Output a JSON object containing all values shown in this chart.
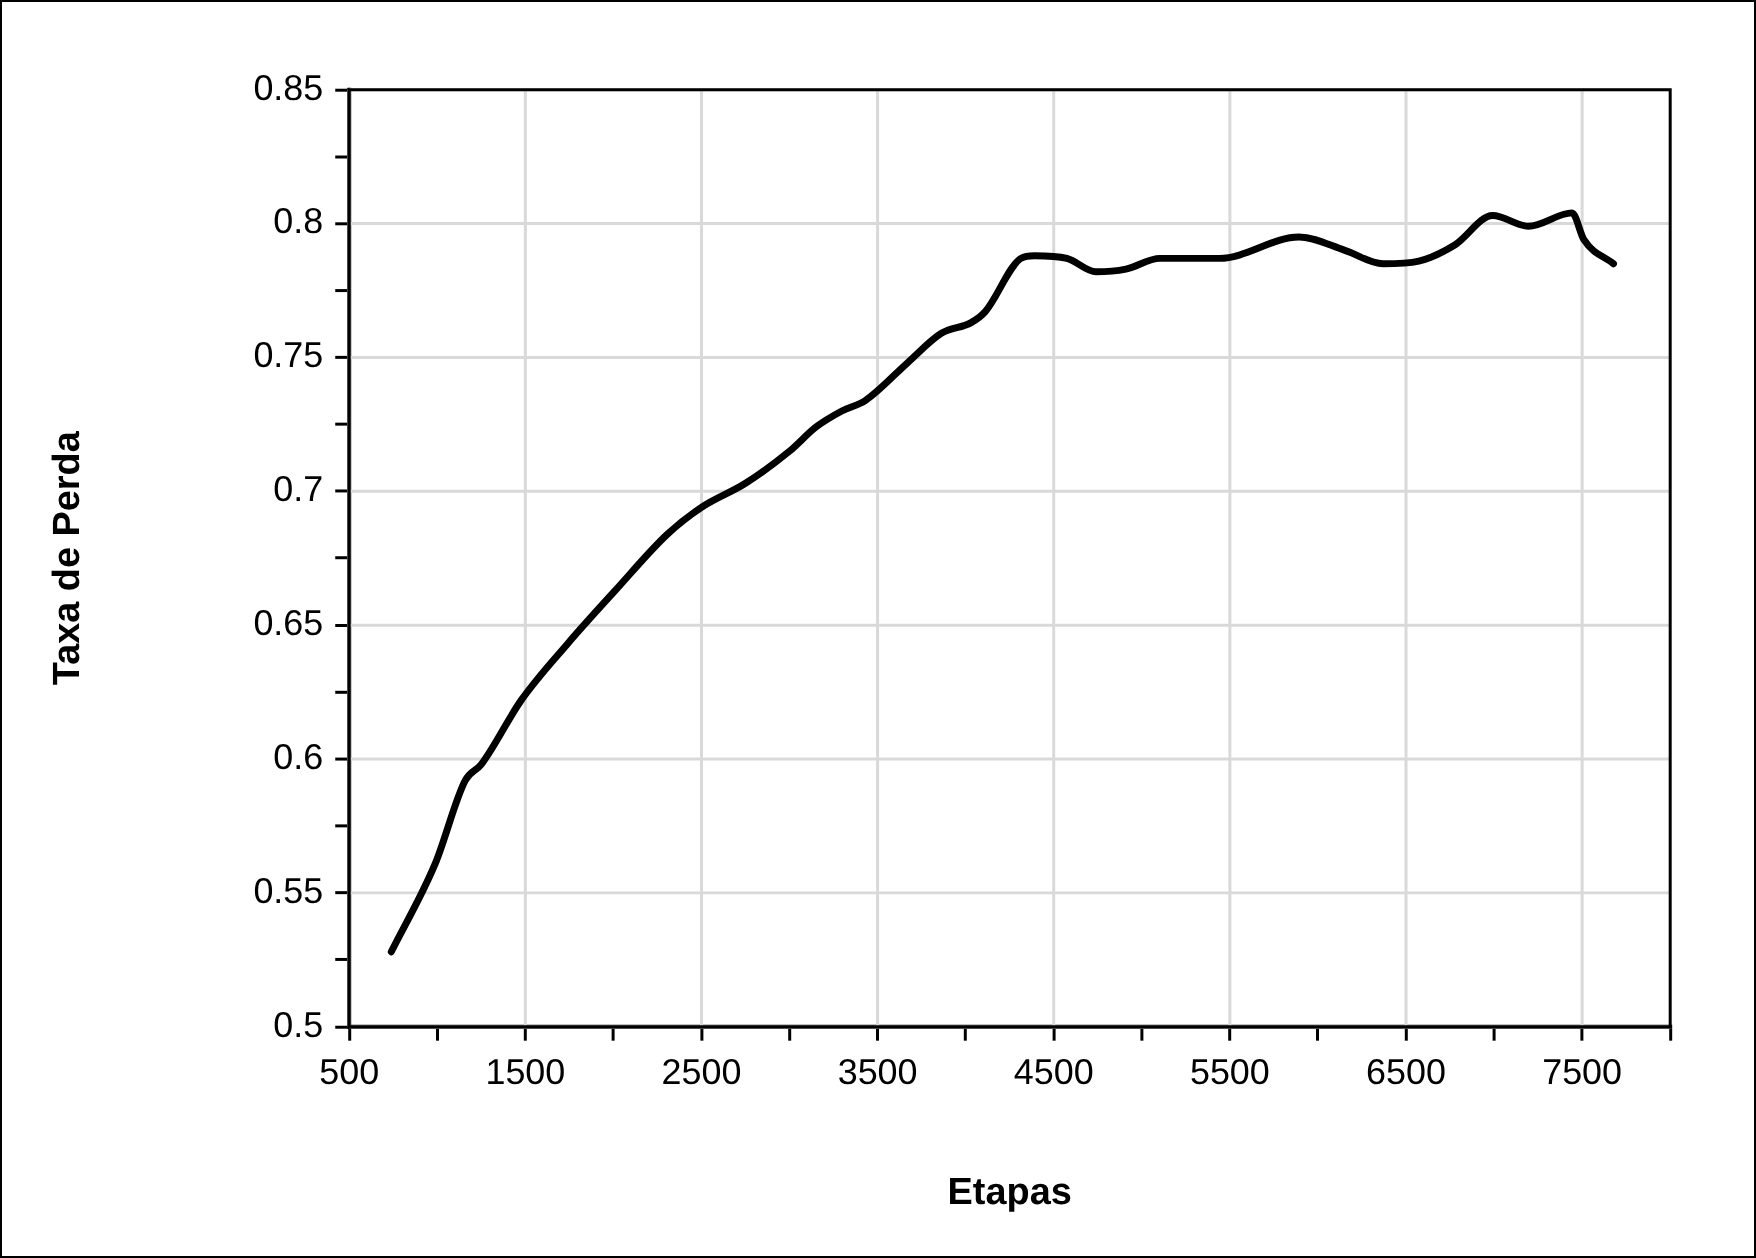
{
  "chart_data": {
    "type": "line",
    "xlabel": "Etapas",
    "ylabel": "Taxa de Perda",
    "grid": true,
    "marker": "none",
    "line_style": "solid",
    "xlim": [
      500,
      8000
    ],
    "ylim": [
      0.5,
      0.85
    ],
    "xticks": [
      500,
      {
        "value": 1000,
        "label": null
      },
      1500,
      {
        "value": 2000,
        "label": null
      },
      2500,
      {
        "value": 3000,
        "label": null
      },
      3500,
      {
        "value": 4000,
        "label": null
      },
      4500,
      {
        "value": 5000,
        "label": null
      },
      5500,
      {
        "value": 6000,
        "label": null
      },
      6500,
      {
        "value": 7000,
        "label": null
      },
      7500,
      {
        "value": 8000,
        "label": null
      }
    ],
    "yticks": [
      0.5,
      {
        "value": 0.525,
        "label": null
      },
      0.55,
      {
        "value": 0.575,
        "label": null
      },
      0.6,
      {
        "value": 0.625,
        "label": null
      },
      0.65,
      {
        "value": 0.675,
        "label": null
      },
      0.7,
      {
        "value": 0.725,
        "label": null
      },
      0.75,
      {
        "value": 0.775,
        "label": null
      },
      0.8,
      {
        "value": 0.825,
        "label": null
      },
      0.85
    ],
    "series": [
      {
        "color": "#000000",
        "x": [
          739,
          989,
          1159,
          1250,
          1477,
          1739,
          2011,
          2307,
          2500,
          2750,
          3000,
          3150,
          3297,
          3432,
          3670,
          3862,
          4031,
          4110,
          4314,
          4390,
          4575,
          4740,
          4910,
          5103,
          5440,
          5893,
          6153,
          6370,
          6573,
          6777,
          6992,
          7195,
          7443,
          7510,
          7678
        ],
        "values": [
          0.528,
          0.561,
          0.592,
          0.598,
          0.622,
          0.643,
          0.663,
          0.684,
          0.694,
          0.703,
          0.715,
          0.724,
          0.73,
          0.734,
          0.748,
          0.759,
          0.763,
          0.767,
          0.787,
          0.788,
          0.787,
          0.782,
          0.783,
          0.787,
          0.787,
          0.795,
          0.79,
          0.785,
          0.786,
          0.792,
          0.803,
          0.799,
          0.804,
          0.794,
          0.785
        ]
      }
    ]
  }
}
